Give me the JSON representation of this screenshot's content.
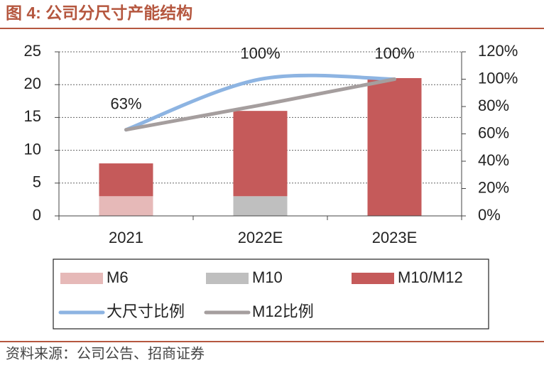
{
  "chart_data": {
    "type": "bar",
    "title": "图 4: 公司分尺寸产能结构",
    "source": "资料来源：公司公告、招商证券",
    "categories": [
      "2021",
      "2022E",
      "2023E"
    ],
    "series": [
      {
        "name": "M6",
        "color": "#e6b9b8",
        "values": [
          3,
          0,
          0
        ]
      },
      {
        "name": "M10",
        "color": "#bfbfbf",
        "values": [
          0,
          3,
          0
        ]
      },
      {
        "name": "M10/M12",
        "color": "#c55a5a",
        "values": [
          5,
          13,
          21
        ]
      },
      {
        "name": "大尺寸比例",
        "type": "line",
        "smooth": true,
        "axis": "y2",
        "color": "#8db4e2",
        "values": [
          63,
          100,
          100
        ],
        "value_labels": [
          "63%",
          "100%",
          "100%"
        ]
      },
      {
        "name": "M12比例",
        "type": "line",
        "axis": "y2",
        "color": "#a59e9e",
        "values": [
          63,
          81,
          100
        ]
      }
    ],
    "ylim": [
      0,
      25
    ],
    "yticks": [
      0,
      5,
      10,
      15,
      20,
      25
    ],
    "y2lim": [
      0,
      120
    ],
    "y2ticks": [
      {
        "value": 0,
        "label": "0%"
      },
      {
        "value": 20,
        "label": "20%"
      },
      {
        "value": 40,
        "label": "40%"
      },
      {
        "value": 60,
        "label": "60%"
      },
      {
        "value": 80,
        "label": "80%"
      },
      {
        "value": 100,
        "label": "100%"
      },
      {
        "value": 120,
        "label": "120%"
      }
    ],
    "grid": true
  }
}
